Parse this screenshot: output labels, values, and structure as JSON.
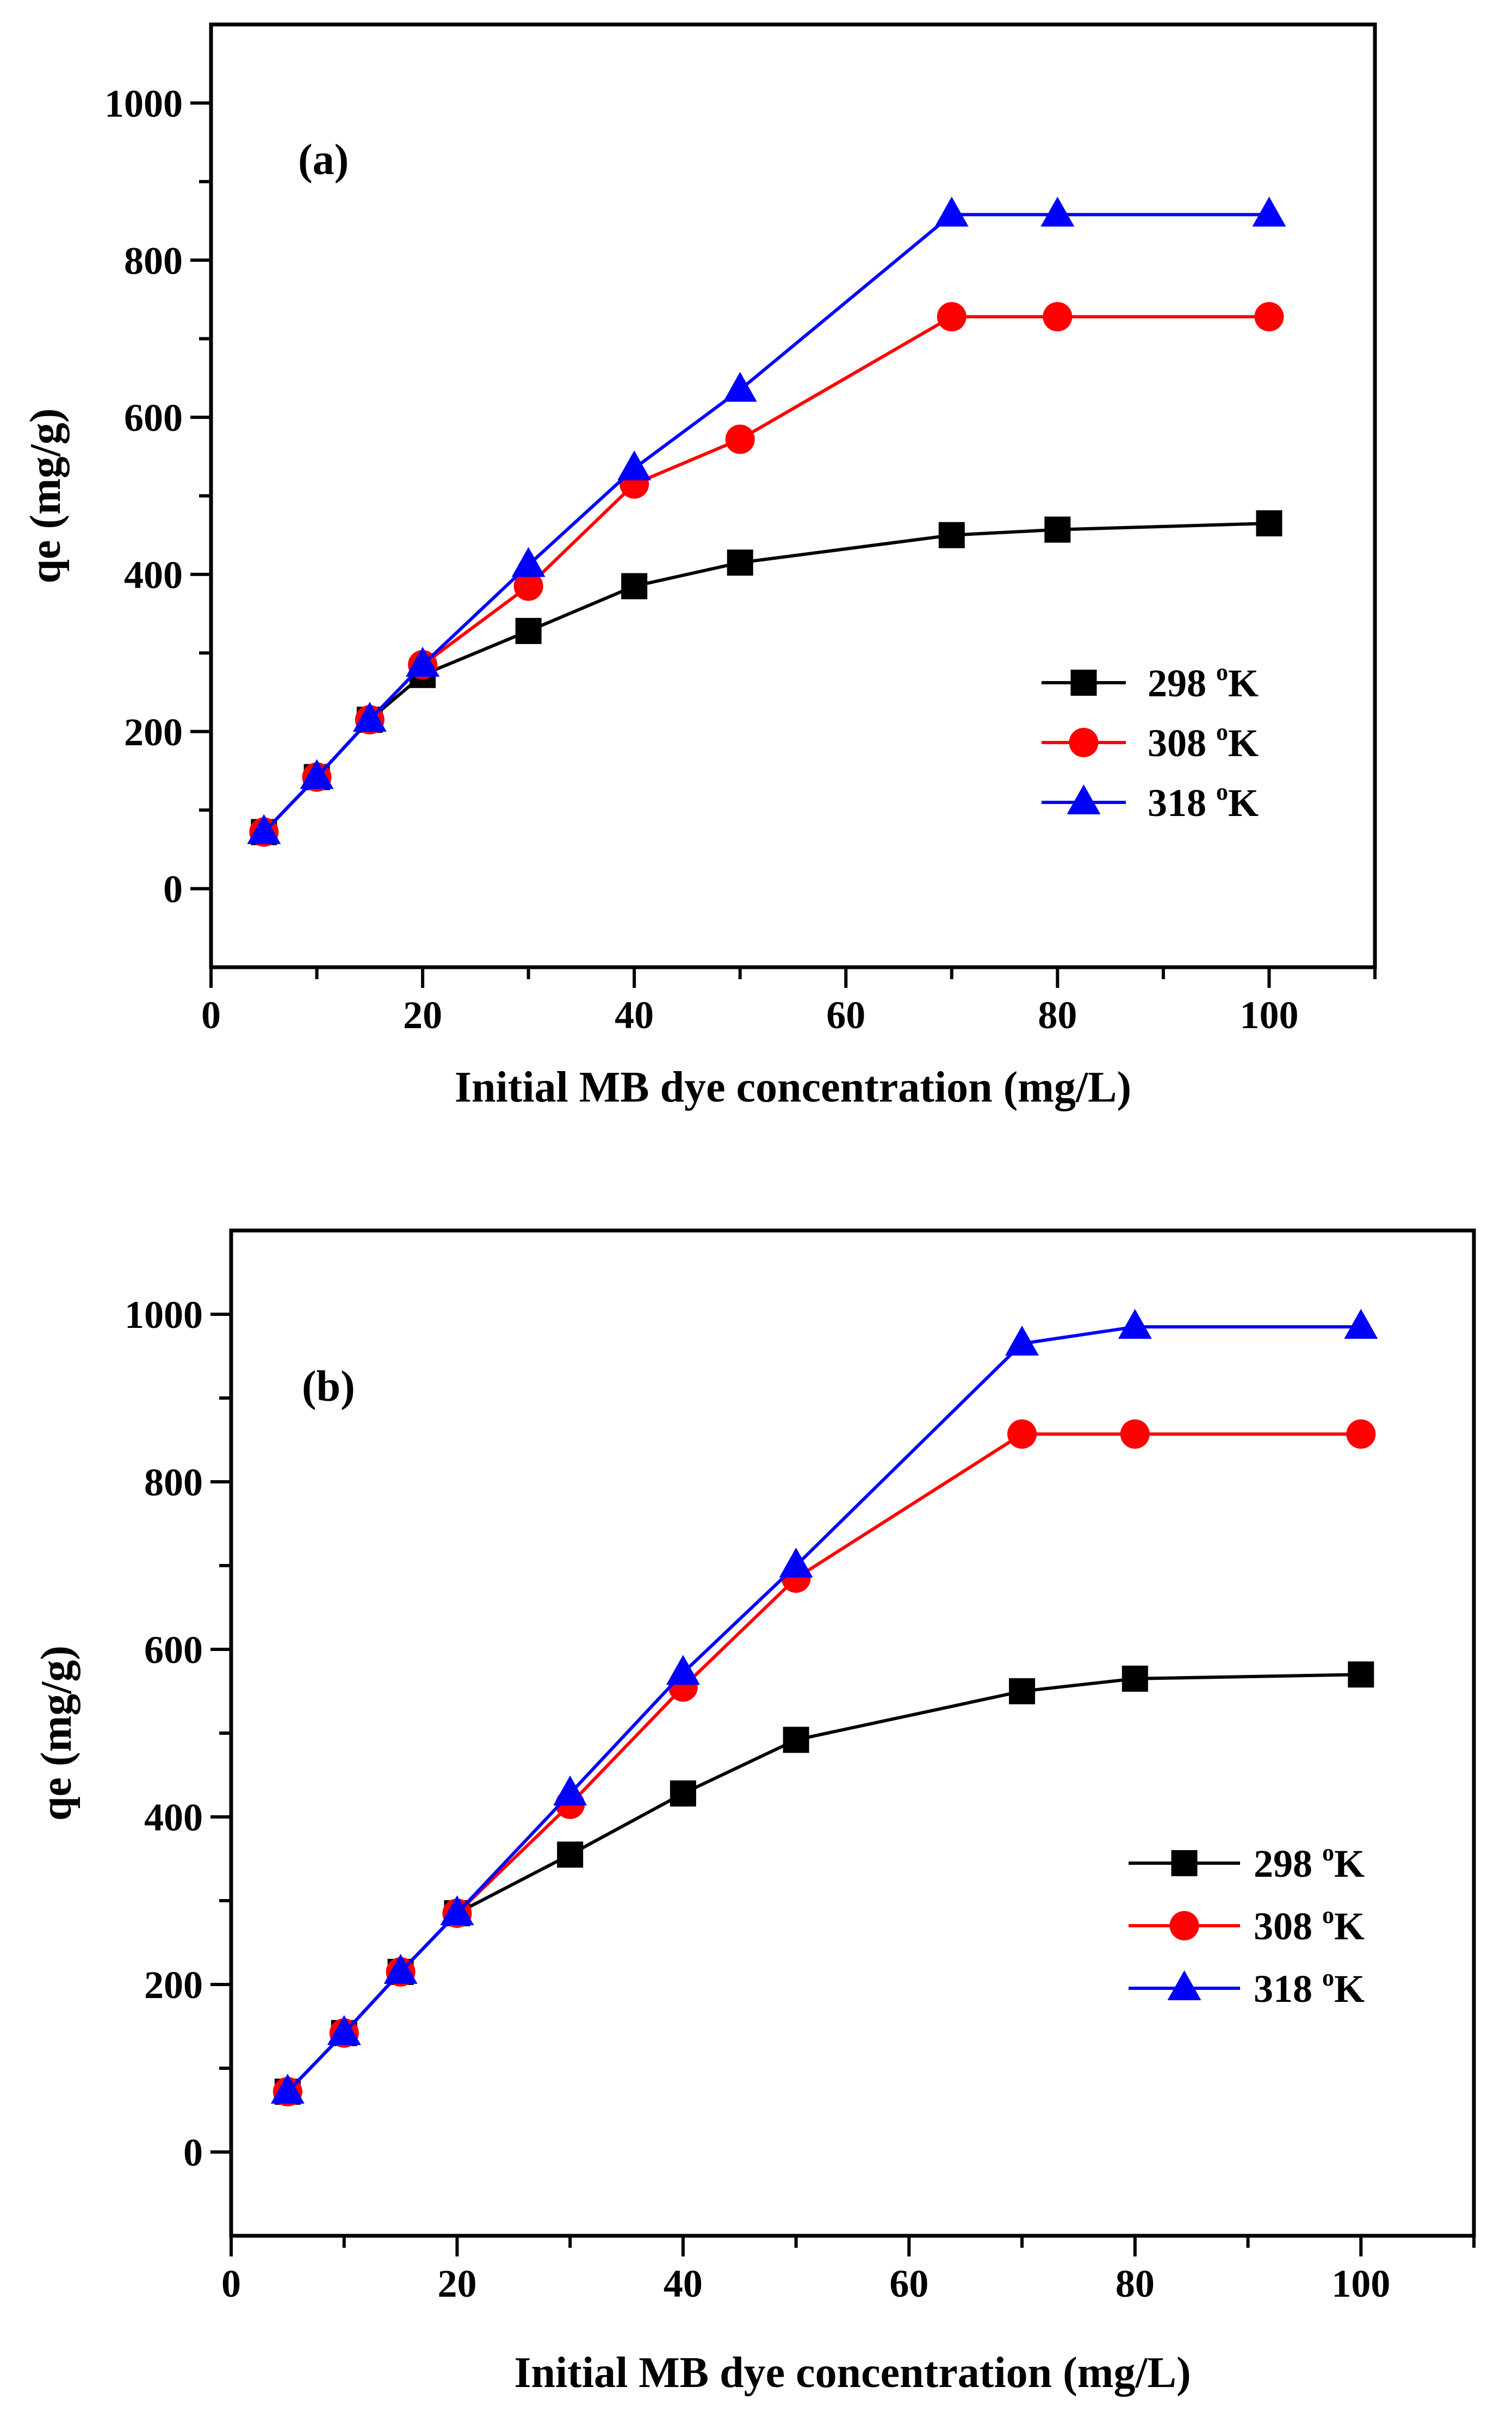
{
  "chart_data": [
    {
      "type": "line",
      "panel_label": "(a)",
      "xlabel": "Initial MB dye concentration (mg/L)",
      "ylabel": "qe (mg/g)",
      "xlim": [
        0,
        110
      ],
      "ylim": [
        -100,
        1100
      ],
      "xticks": [
        "0",
        "20",
        "40",
        "60",
        "80",
        "100"
      ],
      "yticks": [
        "0",
        "200",
        "400",
        "600",
        "800",
        "1000"
      ],
      "x": [
        5,
        10,
        15,
        20,
        30,
        40,
        50,
        70,
        80,
        100
      ],
      "series": [
        {
          "name": "298 °K",
          "label_main": "298 ",
          "label_sup": "o",
          "label_end": "K",
          "color": "#000000",
          "marker": "square",
          "values": [
            72,
            142,
            215,
            272,
            328,
            385,
            415,
            450,
            457,
            465
          ]
        },
        {
          "name": "308 °K",
          "label_main": "308 ",
          "label_sup": "o",
          "label_end": "K",
          "color": "#ff0000",
          "marker": "circle",
          "values": [
            72,
            142,
            215,
            285,
            385,
            515,
            572,
            728,
            728,
            728
          ]
        },
        {
          "name": "318 °K",
          "label_main": "318 ",
          "label_sup": "o",
          "label_end": "K",
          "color": "#0000ff",
          "marker": "triangle",
          "values": [
            72,
            142,
            215,
            285,
            412,
            535,
            635,
            858,
            858,
            858
          ]
        }
      ]
    },
    {
      "type": "line",
      "panel_label": "(b)",
      "xlabel": "Initial MB dye concentration (mg/L)",
      "ylabel": "qe (mg/g)",
      "xlim": [
        0,
        110
      ],
      "ylim": [
        -100,
        1100
      ],
      "xticks": [
        "0",
        "20",
        "40",
        "60",
        "80",
        "100"
      ],
      "yticks": [
        "0",
        "200",
        "400",
        "600",
        "800",
        "1000"
      ],
      "x": [
        5,
        10,
        15,
        20,
        30,
        40,
        50,
        70,
        80,
        100
      ],
      "series": [
        {
          "name": "298 °K",
          "label_main": "298 ",
          "label_sup": "o",
          "label_end": "K",
          "color": "#000000",
          "marker": "square",
          "values": [
            72,
            142,
            215,
            285,
            355,
            428,
            492,
            550,
            565,
            570
          ]
        },
        {
          "name": "308 °K",
          "label_main": "308 ",
          "label_sup": "o",
          "label_end": "K",
          "color": "#ff0000",
          "marker": "circle",
          "values": [
            72,
            142,
            215,
            285,
            415,
            555,
            685,
            857,
            857,
            857
          ]
        },
        {
          "name": "318 °K",
          "label_main": "318 ",
          "label_sup": "o",
          "label_end": "K",
          "color": "#0000ff",
          "marker": "triangle",
          "values": [
            72,
            142,
            215,
            285,
            428,
            572,
            700,
            965,
            985,
            985
          ]
        }
      ]
    }
  ]
}
